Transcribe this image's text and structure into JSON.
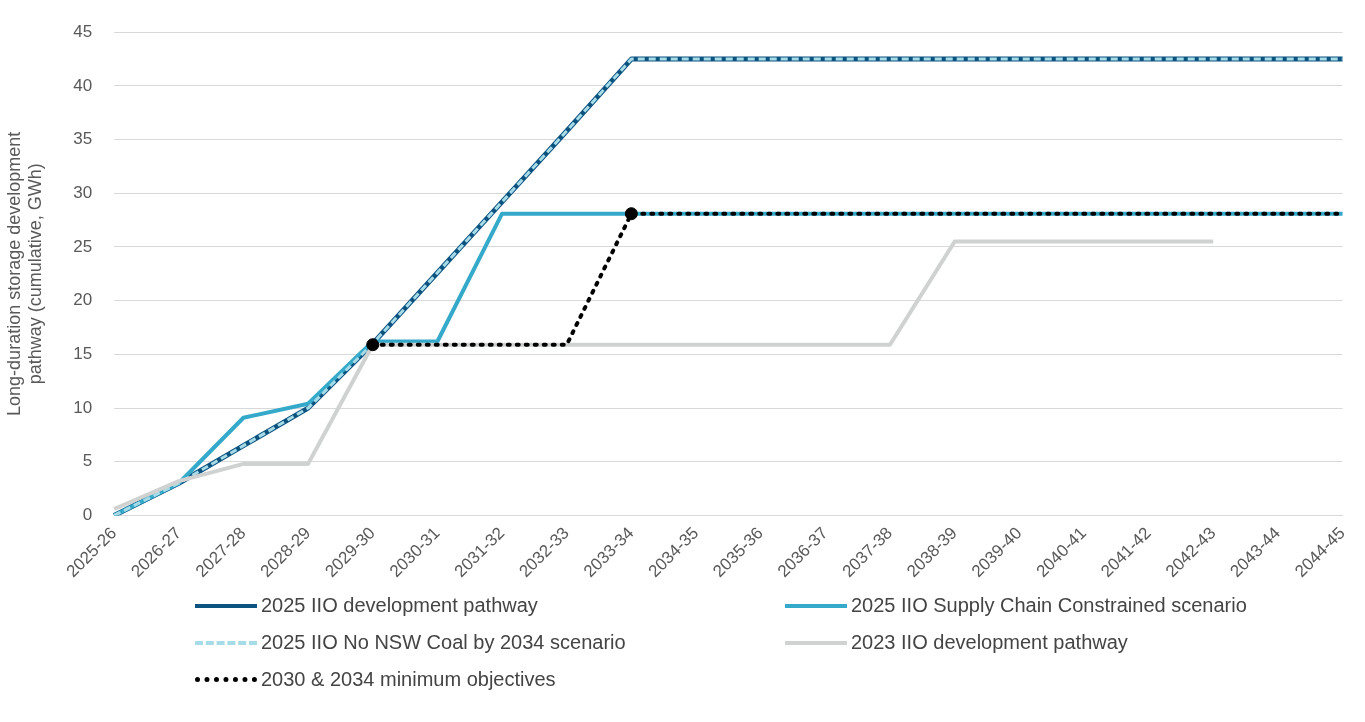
{
  "chart_data": {
    "type": "line",
    "ylabel": "Long-duration storage development pathway (cumulative, GWh)",
    "categories": [
      "2025-26",
      "2026-27",
      "2027-28",
      "2028-29",
      "2029-30",
      "2030-31",
      "2031-32",
      "2032-33",
      "2033-34",
      "2034-35",
      "2035-36",
      "2036-37",
      "2037-38",
      "2038-39",
      "2039-40",
      "2040-41",
      "2041-42",
      "2042-43",
      "2043-44",
      "2044-45"
    ],
    "series": [
      {
        "name": "2025 IIO development pathway",
        "color": "#0d5380",
        "values": [
          0,
          3,
          6.5,
          10,
          16,
          22.6,
          29.2,
          35.8,
          42.5,
          42.5,
          42.5,
          42.5,
          42.5,
          42.5,
          42.5,
          42.5,
          42.5,
          42.5,
          42.5,
          42.5
        ]
      },
      {
        "name": "2025 IIO Supply Chain Constrained scenario",
        "color": "#35a9c9",
        "values": [
          0,
          3,
          9.1,
          10.4,
          16.2,
          16.2,
          28.1,
          28.1,
          28.1,
          28.1,
          28.1,
          28.1,
          28.1,
          28.1,
          28.1,
          28.1,
          28.1,
          28.1,
          28.1,
          28.1
        ]
      },
      {
        "name": "2025 IIO No NSW Coal by 2034 scenario",
        "color": "#a6dbe8",
        "line_style": "dashed",
        "values": [
          0,
          3,
          6.5,
          10,
          16,
          22.6,
          29.2,
          35.8,
          42.5,
          42.5,
          42.5,
          42.5,
          42.5,
          42.5,
          42.5,
          42.5,
          42.5,
          42.5,
          42.5,
          42.5
        ]
      },
      {
        "name": "2023 IIO development pathway",
        "color": "#d0d2d2",
        "values": [
          0.6,
          3.2,
          4.8,
          4.8,
          15.9,
          15.9,
          15.9,
          15.9,
          15.9,
          15.9,
          15.9,
          15.9,
          15.9,
          25.5,
          25.5,
          25.5,
          25.5,
          25.5,
          null,
          null
        ]
      },
      {
        "name": "2030 & 2034 minimum objectives",
        "color": "#000000",
        "line_style": "dotted",
        "values": [
          null,
          null,
          null,
          null,
          15.9,
          15.9,
          15.9,
          15.9,
          28.1,
          28.1,
          28.1,
          28.1,
          28.1,
          28.1,
          28.1,
          28.1,
          28.1,
          28.1,
          28.1,
          28.1
        ]
      },
      {
        "type": "scatter",
        "color": "#000000",
        "marker": "circle",
        "x": [
          "2029-30",
          "2033-34"
        ],
        "values": [
          15.9,
          28.1
        ]
      }
    ],
    "ylim": [
      0,
      45
    ],
    "yticks": [
      0,
      5,
      10,
      15,
      20,
      25,
      30,
      35,
      40,
      45
    ],
    "grid": "y",
    "legend": "bottom"
  }
}
